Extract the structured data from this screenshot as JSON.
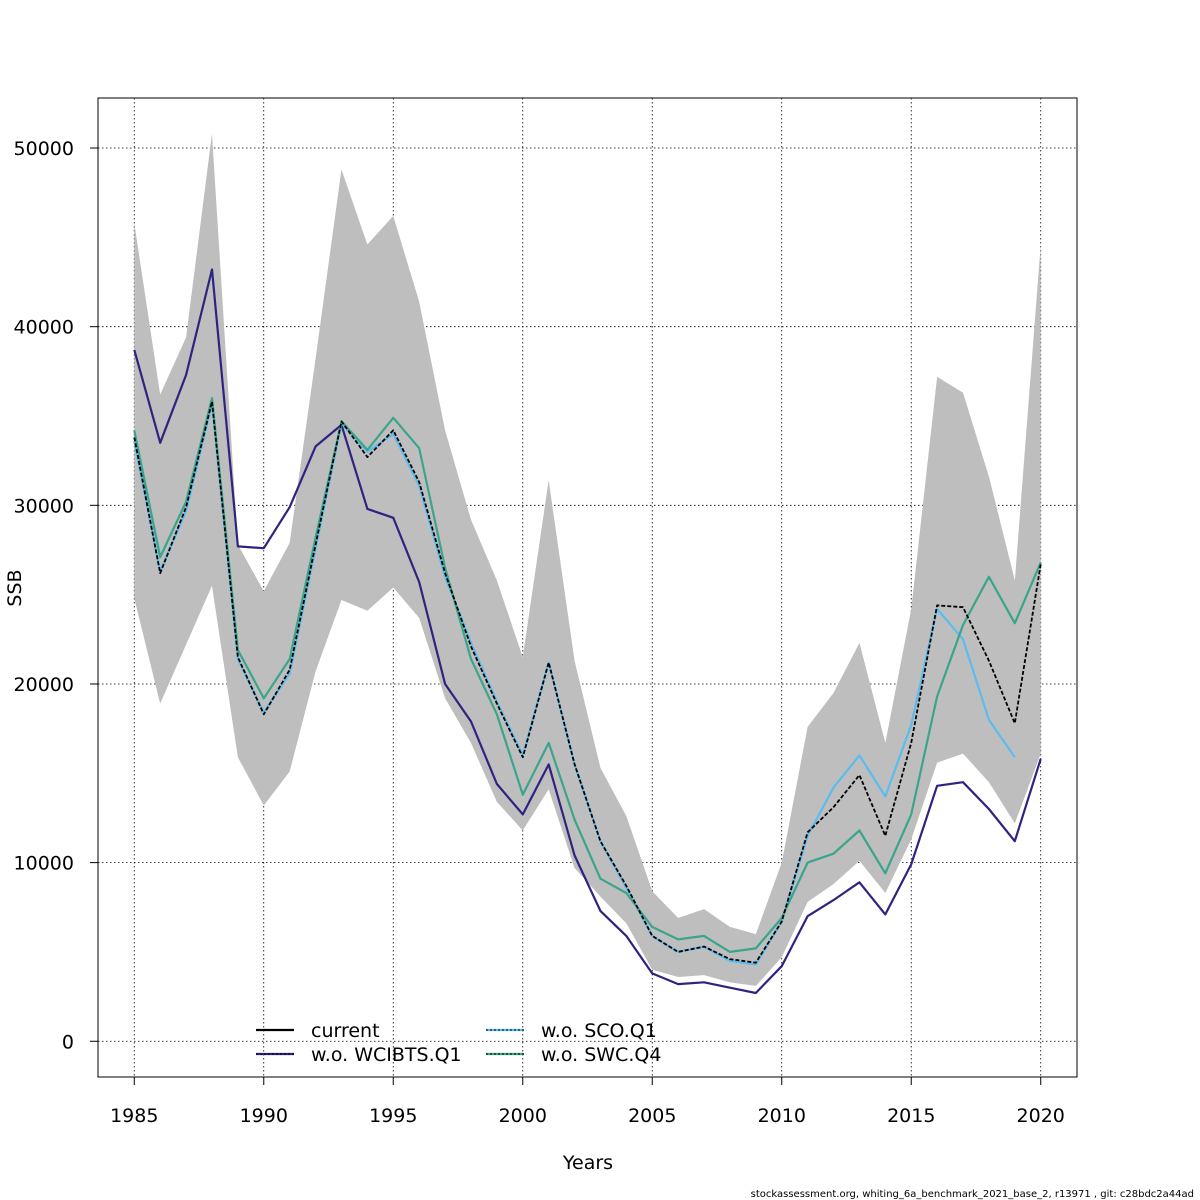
{
  "chart_data": {
    "type": "line",
    "title": "",
    "xlabel": "Years",
    "ylabel": "SSB",
    "xlim": [
      1983.6,
      2021.4
    ],
    "ylim": [
      -2000,
      52800
    ],
    "xticks": [
      1985,
      1990,
      1995,
      2000,
      2005,
      2010,
      2015,
      2020
    ],
    "yticks": [
      0,
      10000,
      20000,
      30000,
      40000,
      50000
    ],
    "grid": true,
    "legend_position": "bottom-center",
    "x": [
      1985,
      1986,
      1987,
      1988,
      1989,
      1990,
      1991,
      1992,
      1993,
      1994,
      1995,
      1996,
      1997,
      1998,
      1999,
      2000,
      2001,
      2002,
      2003,
      2004,
      2005,
      2006,
      2007,
      2008,
      2009,
      2010,
      2011,
      2012,
      2013,
      2014,
      2015,
      2016,
      2017,
      2018,
      2019,
      2020
    ],
    "confidence_band": {
      "color": "#bebebe",
      "upper": [
        45800,
        36200,
        39400,
        50800,
        27800,
        25200,
        27900,
        38200,
        48800,
        44600,
        46200,
        41400,
        34200,
        29200,
        25800,
        21500,
        31400,
        21300,
        15300,
        12600,
        8400,
        6900,
        7400,
        6400,
        6000,
        10000,
        17600,
        19500,
        22300,
        16700,
        24200,
        37200,
        36300,
        31600,
        25800,
        44600
      ],
      "lower": [
        24800,
        18900,
        22200,
        25500,
        15900,
        13200,
        15100,
        20700,
        24700,
        24100,
        25400,
        23700,
        19200,
        16700,
        13400,
        11800,
        14100,
        9700,
        8100,
        6600,
        4000,
        3600,
        3700,
        3300,
        3100,
        4700,
        7800,
        8800,
        10100,
        8300,
        11300,
        15600,
        16100,
        14500,
        12200,
        16100
      ]
    },
    "series": [
      {
        "name": "current",
        "color": "#000000",
        "dash": "",
        "values": [
          33800,
          26200,
          29900,
          35800,
          21500,
          18300,
          20800,
          27800,
          34700,
          32700,
          34200,
          31300,
          26200,
          22100,
          18900,
          15900,
          21200,
          15500,
          11200,
          8700,
          5900,
          5000,
          5300,
          4600,
          4400,
          6700,
          11700,
          13100,
          14900,
          11500,
          16700,
          24400,
          24300,
          21300,
          17800,
          26700
        ]
      },
      {
        "name": "w.o. WCIBTS.Q1",
        "color": "#2e2480",
        "dash": "",
        "values": [
          38700,
          33500,
          37300,
          43200,
          27700,
          27600,
          29900,
          33300,
          34500,
          29800,
          29300,
          25700,
          20000,
          17900,
          14400,
          12700,
          15500,
          10400,
          7300,
          5900,
          3800,
          3200,
          3300,
          3000,
          2700,
          4200,
          7000,
          7900,
          8900,
          7100,
          9900,
          14300,
          14500,
          13000,
          11200,
          15800
        ]
      },
      {
        "name": "w.o. SCO.Q1",
        "color": "#5bbcf0",
        "dash": "",
        "values": [
          33600,
          26300,
          29700,
          35700,
          21400,
          18400,
          20600,
          27600,
          34600,
          33000,
          34000,
          31100,
          26000,
          22300,
          19000,
          16000,
          21200,
          15500,
          11200,
          8600,
          5900,
          5000,
          5300,
          4500,
          4300,
          6700,
          11500,
          14200,
          16000,
          13700,
          17700,
          24200,
          22500,
          18000,
          15900,
          null
        ]
      },
      {
        "name": "w.o. SWC.Q4",
        "color": "#3aa58a",
        "dash": "",
        "values": [
          34200,
          27100,
          30200,
          36000,
          21900,
          19200,
          21400,
          28200,
          34700,
          33100,
          34900,
          33200,
          26500,
          21400,
          18300,
          13800,
          16700,
          12400,
          9100,
          8300,
          6400,
          5700,
          5900,
          5000,
          5200,
          6900,
          10000,
          10500,
          11800,
          9400,
          12700,
          19300,
          23300,
          26000,
          23400,
          26800
        ]
      }
    ],
    "legend": {
      "col1": [
        "current",
        "w.o. WCIBTS.Q1"
      ],
      "col2": [
        "w.o. SCO.Q1",
        "w.o. SWC.Q4"
      ]
    }
  },
  "caption": "stockassessment.org, whiting_6a_benchmark_2021_base_2, r13971 , git: c28bdc2a44ad"
}
